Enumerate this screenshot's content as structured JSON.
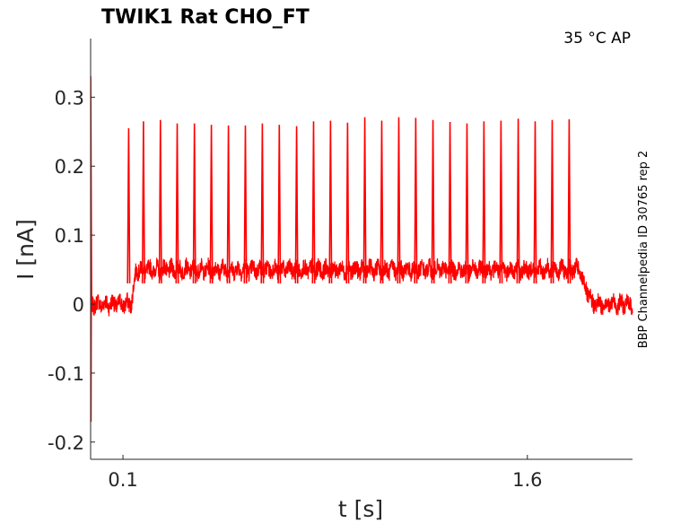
{
  "chart_data": {
    "type": "line",
    "title": "TWIK1  Rat  CHO_FT",
    "annotation": "35 °C  AP",
    "side_label": "BBP Channelpedia ID 30765 rep 2",
    "xlabel": "t [s]",
    "ylabel": "I [nA]",
    "xlim": [
      -0.02,
      1.99
    ],
    "ylim": [
      -0.225,
      0.385
    ],
    "x_ticks": [
      0.1,
      1.6
    ],
    "x_tick_labels": [
      "0.1",
      "1.6"
    ],
    "y_ticks": [
      -0.2,
      -0.1,
      0,
      0.1,
      0.2,
      0.3
    ],
    "y_tick_labels": [
      "-0.2",
      "-0.1",
      "0",
      "0.1",
      "0.2",
      "0.3"
    ],
    "grid": false,
    "series": [
      {
        "color": "#ff0000",
        "baseline_level": 0.0,
        "plateau_level": 0.05,
        "stim_on": 0.13,
        "stim_off": 1.79,
        "artifact_peak": 0.33,
        "artifact_trough": -0.17,
        "spike_times": [
          0.121,
          0.176,
          0.239,
          0.301,
          0.365,
          0.428,
          0.491,
          0.554,
          0.617,
          0.68,
          0.744,
          0.807,
          0.87,
          0.933,
          0.997,
          1.06,
          1.123,
          1.186,
          1.25,
          1.313,
          1.376,
          1.439,
          1.502,
          1.566,
          1.629,
          1.692,
          1.755
        ],
        "spike_peaks": [
          0.255,
          0.265,
          0.267,
          0.262,
          0.262,
          0.26,
          0.259,
          0.259,
          0.262,
          0.26,
          0.258,
          0.265,
          0.266,
          0.263,
          0.271,
          0.266,
          0.271,
          0.27,
          0.267,
          0.264,
          0.262,
          0.265,
          0.266,
          0.269,
          0.265,
          0.267,
          0.268
        ]
      }
    ]
  }
}
